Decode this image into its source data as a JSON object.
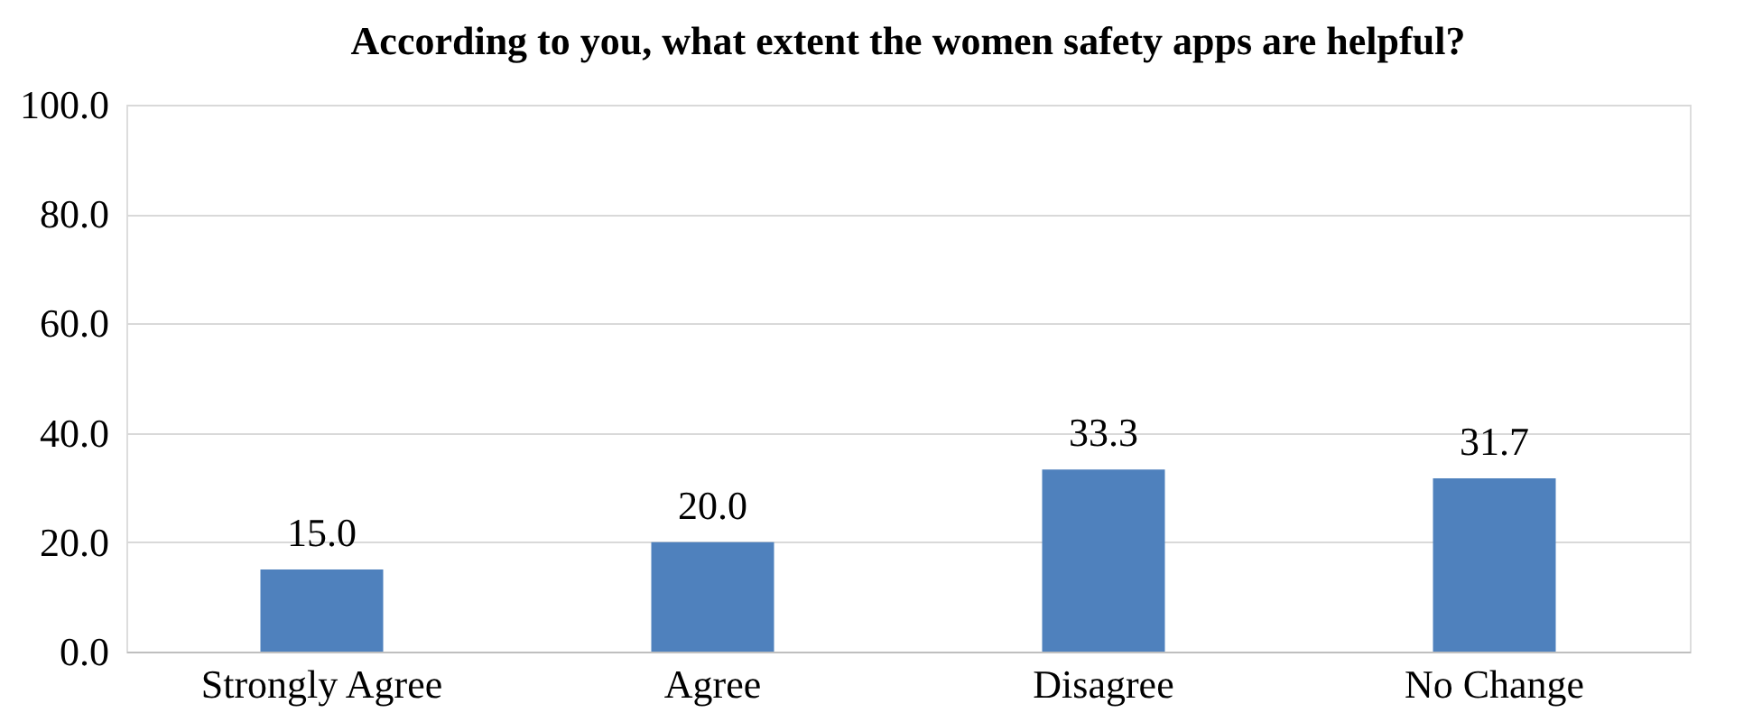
{
  "chart_data": {
    "type": "bar",
    "title": "According to you, what extent the women safety apps are helpful?",
    "categories": [
      "Strongly Agree",
      "Agree",
      "Disagree",
      "No Change"
    ],
    "values": [
      15.0,
      20.0,
      33.3,
      31.7
    ],
    "value_labels": [
      "15.0",
      "20.0",
      "33.3",
      "31.7"
    ],
    "color": "#4f81bd",
    "ylim": [
      0,
      100
    ],
    "yticks": [
      {
        "value": 0,
        "label": "0.0"
      },
      {
        "value": 20,
        "label": "20.0"
      },
      {
        "value": 40,
        "label": "40.0"
      },
      {
        "value": 60,
        "label": "60.0"
      },
      {
        "value": 80,
        "label": "80.0"
      },
      {
        "value": 100,
        "label": "100.0"
      }
    ],
    "grid": "y"
  }
}
